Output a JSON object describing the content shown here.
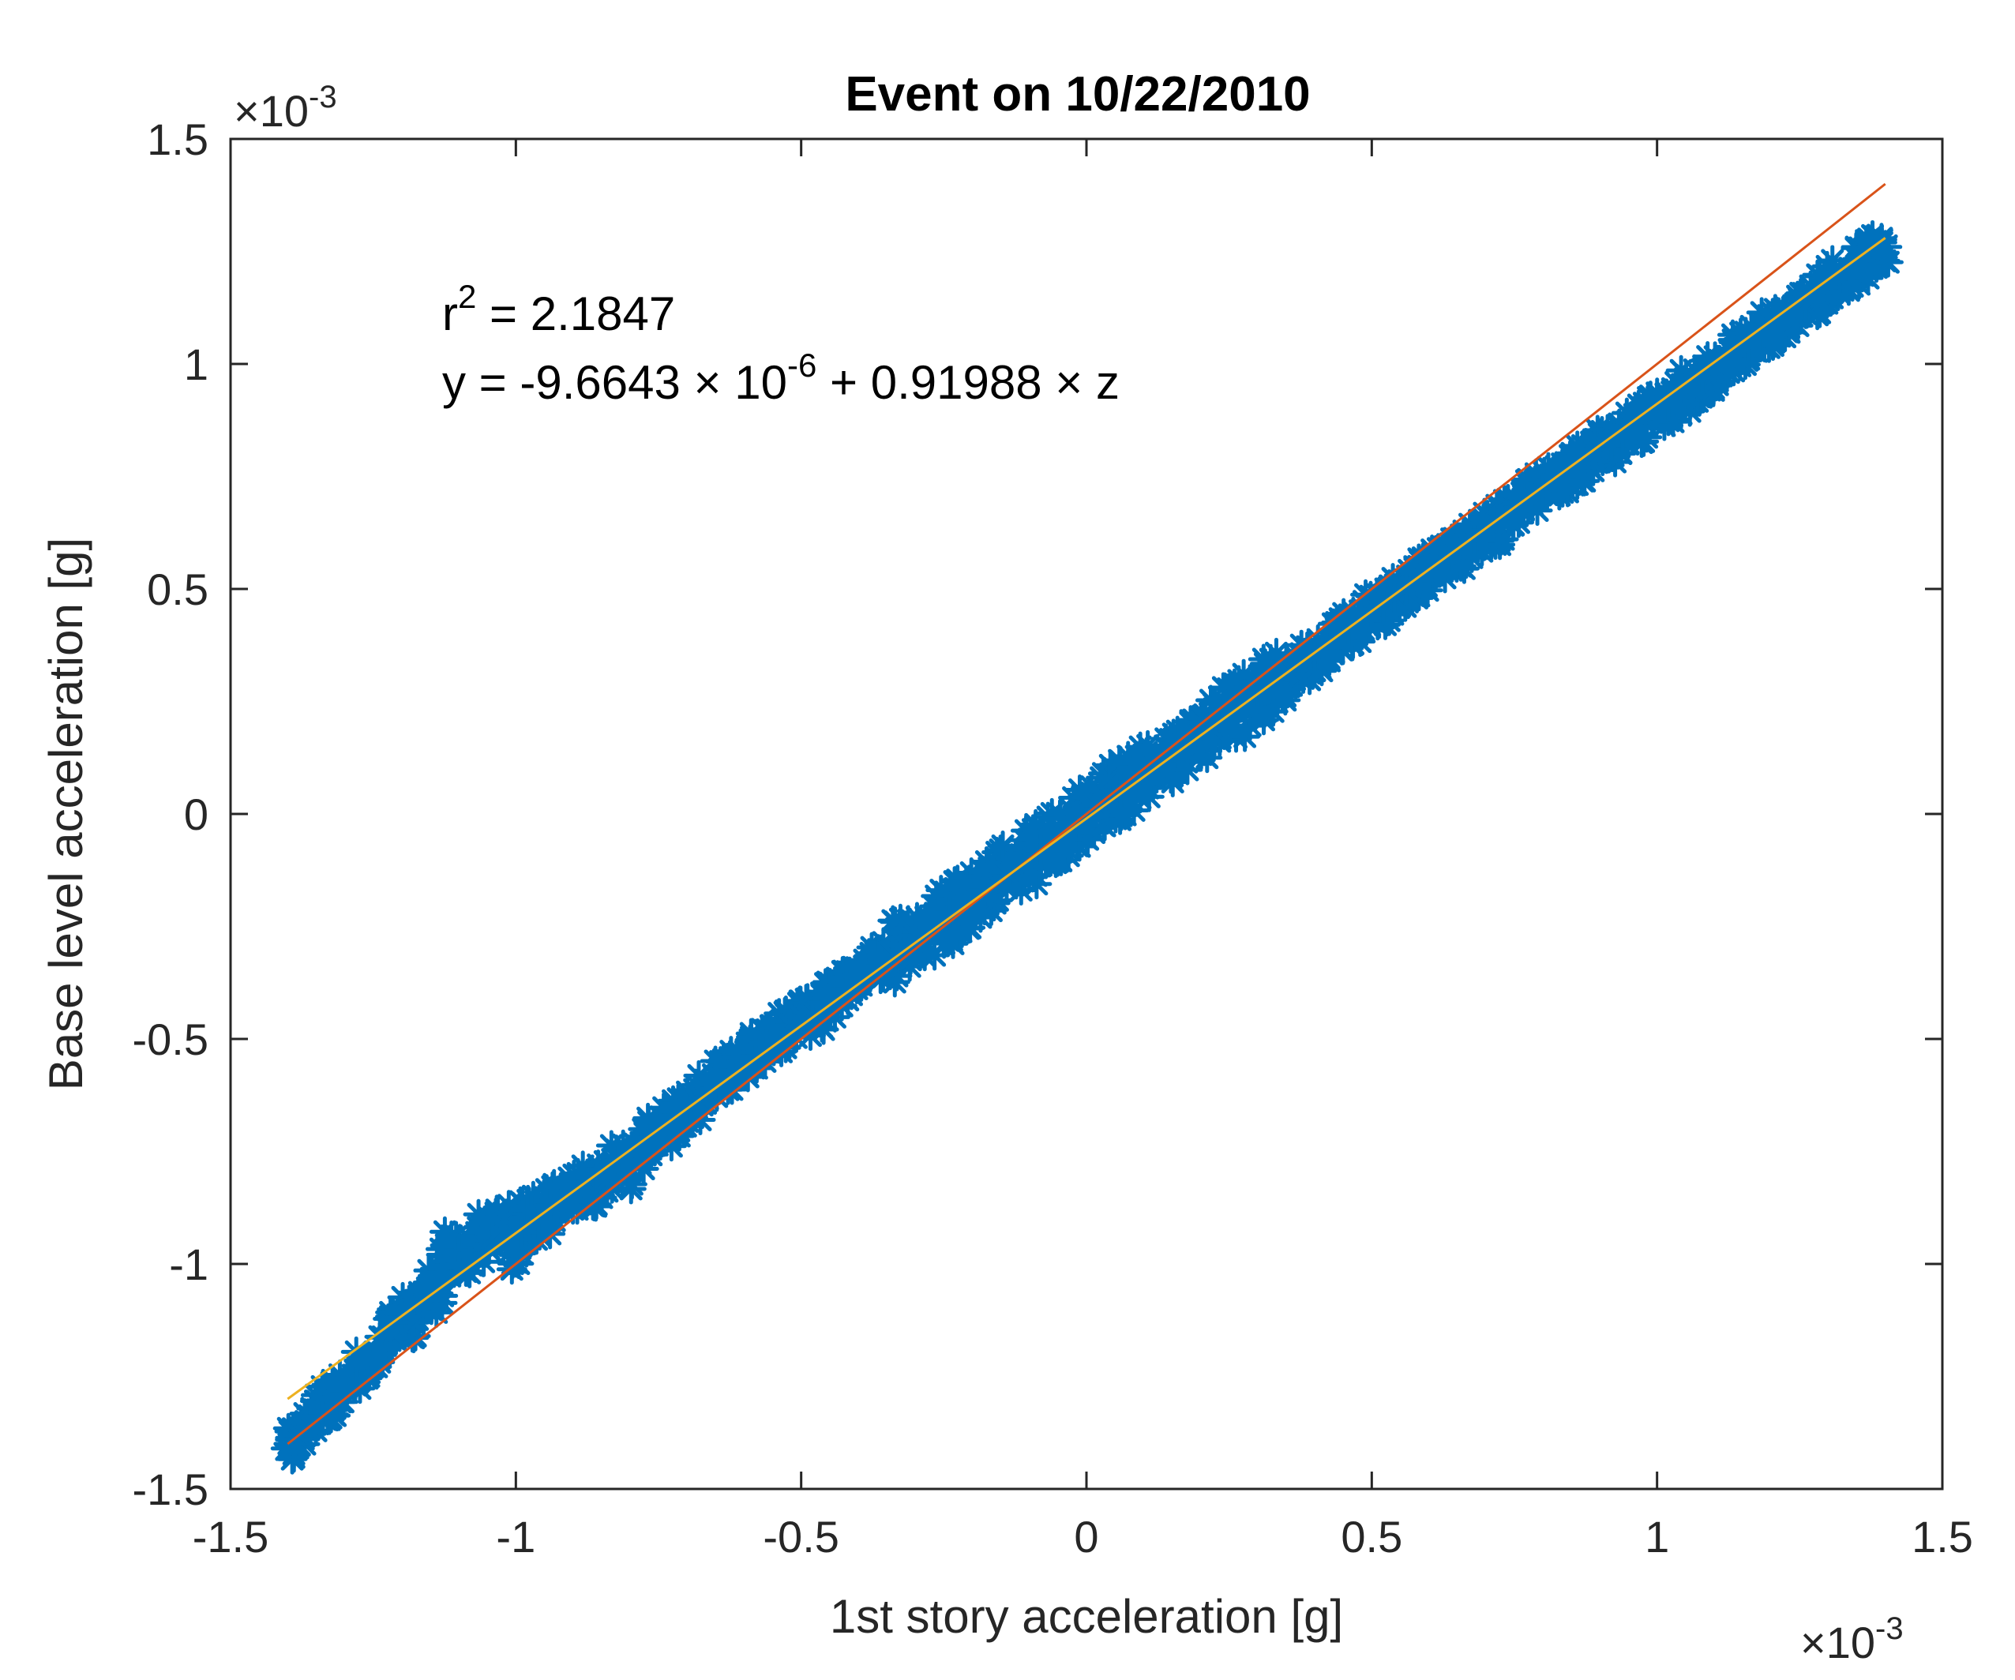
{
  "chart_data": {
    "type": "scatter",
    "title": "Event on 10/22/2010",
    "xlabel": "1st story acceleration [g]",
    "ylabel": "Base level acceleration [g]",
    "xlim": [
      -1.5,
      1.5
    ],
    "ylim": [
      -1.5,
      1.5
    ],
    "x_scale_label": "×10",
    "x_scale_exp": "-3",
    "y_scale_label": "×10",
    "y_scale_exp": "-3",
    "xticks": [
      -1.5,
      -1,
      -0.5,
      0,
      0.5,
      1,
      1.5
    ],
    "yticks": [
      -1.5,
      -1,
      -0.5,
      0,
      0.5,
      1,
      1.5
    ],
    "xtick_labels": [
      "-1.5",
      "-1",
      "-0.5",
      "0",
      "0.5",
      "1",
      "1.5"
    ],
    "ytick_labels": [
      "-1.5",
      "-1",
      "-0.5",
      "0",
      "0.5",
      "1",
      "1.5"
    ],
    "grid": false,
    "colors": {
      "scatter": "#0072BD",
      "identity_line": "#D95319",
      "fit_line": "#EDB120",
      "axis": "#262626"
    },
    "annotation": {
      "r2_prefix": "r",
      "r2_sup": "2",
      "r2_value": " = 2.1847",
      "eq_prefix": "y = -9.6643 × 10",
      "eq_sup": "-6",
      "eq_suffix": " + 0.91988 × z"
    },
    "series": [
      {
        "name": "identity",
        "kind": "line",
        "x": [
          -1.4,
          1.4
        ],
        "y": [
          -1.4,
          1.4
        ]
      },
      {
        "name": "fit",
        "kind": "line",
        "x": [
          -1.4,
          1.4
        ],
        "y": [
          -1.3,
          1.28
        ]
      },
      {
        "name": "measurements",
        "kind": "scatter",
        "marker": "*",
        "x": [
          -1.4,
          -1.38,
          -1.36,
          -1.34,
          -1.32,
          -1.3,
          -1.28,
          -1.26,
          -1.24,
          -1.22,
          -1.2,
          -1.19,
          -1.18,
          -1.16,
          -1.15,
          -1.14,
          -1.13,
          -1.12,
          -1.1,
          -1.08,
          -1.06,
          -1.05,
          -1.04,
          -1.02,
          -1.0,
          -0.99,
          -0.98,
          -0.96,
          -0.94,
          -0.92,
          -0.9,
          -0.88,
          -0.86,
          -0.84,
          -0.82,
          -0.8,
          -0.78,
          -0.76,
          -0.74,
          -0.72,
          -0.7,
          -0.68,
          -0.66,
          -0.64,
          -0.62,
          -0.6,
          -0.58,
          -0.56,
          -0.54,
          -0.52,
          -0.5,
          -0.48,
          -0.46,
          -0.44,
          -0.42,
          -0.4,
          -0.38,
          -0.36,
          -0.34,
          -0.32,
          -0.3,
          -0.28,
          -0.26,
          -0.24,
          -0.22,
          -0.2,
          -0.18,
          -0.16,
          -0.14,
          -0.12,
          -0.1,
          -0.08,
          -0.06,
          -0.04,
          -0.02,
          0.0,
          0.02,
          0.04,
          0.06,
          0.08,
          0.1,
          0.12,
          0.14,
          0.16,
          0.18,
          0.2,
          0.22,
          0.24,
          0.26,
          0.28,
          0.3,
          0.32,
          0.34,
          0.36,
          0.38,
          0.4,
          0.42,
          0.44,
          0.46,
          0.48,
          0.5,
          0.52,
          0.54,
          0.56,
          0.58,
          0.6,
          0.62,
          0.64,
          0.66,
          0.68,
          0.7,
          0.72,
          0.74,
          0.76,
          0.78,
          0.8,
          0.82,
          0.84,
          0.86,
          0.88,
          0.9,
          0.92,
          0.94,
          0.96,
          0.98,
          1.0,
          1.02,
          1.04,
          1.06,
          1.08,
          1.1,
          1.12,
          1.14,
          1.16,
          1.18,
          1.2,
          1.22,
          1.24,
          1.26,
          1.28,
          1.3,
          1.32,
          1.34,
          1.36,
          1.38,
          1.4
        ],
        "y": [
          -1.41,
          -1.38,
          -1.34,
          -1.33,
          -1.3,
          -1.28,
          -1.26,
          -1.21,
          -1.2,
          -1.15,
          -1.12,
          -1.1,
          -1.13,
          -1.08,
          -1.05,
          -1.07,
          -1.02,
          -0.96,
          -0.97,
          -1.0,
          -0.93,
          -0.91,
          -0.94,
          -0.9,
          -0.98,
          -0.93,
          -0.88,
          -0.91,
          -0.87,
          -0.86,
          -0.84,
          -0.82,
          -0.84,
          -0.8,
          -0.77,
          -0.79,
          -0.74,
          -0.72,
          -0.7,
          -0.67,
          -0.66,
          -0.64,
          -0.6,
          -0.59,
          -0.57,
          -0.55,
          -0.53,
          -0.51,
          -0.49,
          -0.47,
          -0.45,
          -0.45,
          -0.42,
          -0.41,
          -0.38,
          -0.36,
          -0.34,
          -0.33,
          -0.31,
          -0.29,
          -0.27,
          -0.26,
          -0.24,
          -0.22,
          -0.2,
          -0.19,
          -0.17,
          -0.15,
          -0.13,
          -0.11,
          -0.1,
          -0.08,
          -0.06,
          -0.04,
          -0.02,
          0.0,
          0.02,
          0.04,
          0.05,
          0.07,
          0.09,
          0.11,
          0.12,
          0.14,
          0.16,
          0.18,
          0.19,
          0.21,
          0.23,
          0.25,
          0.27,
          0.28,
          0.3,
          0.32,
          0.34,
          0.35,
          0.37,
          0.39,
          0.41,
          0.43,
          0.45,
          0.46,
          0.48,
          0.5,
          0.52,
          0.54,
          0.55,
          0.57,
          0.59,
          0.61,
          0.63,
          0.64,
          0.66,
          0.68,
          0.7,
          0.72,
          0.73,
          0.75,
          0.77,
          0.79,
          0.81,
          0.82,
          0.84,
          0.86,
          0.88,
          0.9,
          0.91,
          0.93,
          0.95,
          0.97,
          0.99,
          1.0,
          1.02,
          1.04,
          1.06,
          1.08,
          1.09,
          1.11,
          1.13,
          1.15,
          1.17,
          1.19,
          1.21,
          1.23,
          1.25,
          1.26
        ]
      }
    ]
  }
}
